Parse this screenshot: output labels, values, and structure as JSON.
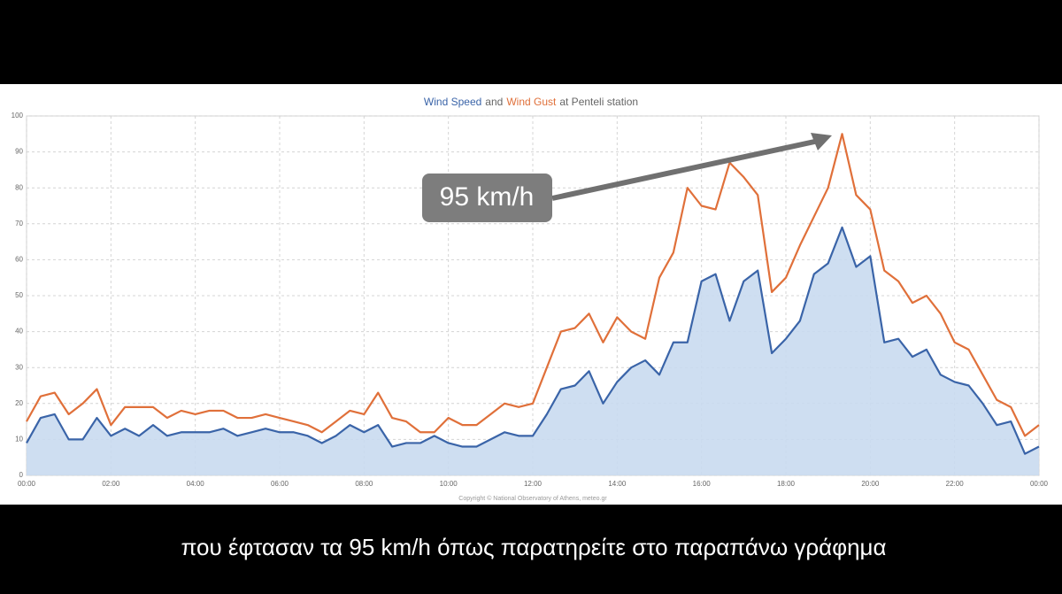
{
  "chart_data": {
    "type": "line",
    "title": {
      "joiner": "and",
      "tail": "at Penteli station"
    },
    "x": [
      0,
      20,
      40,
      60,
      80,
      100,
      120,
      140,
      160,
      180,
      200,
      220,
      240,
      260,
      280,
      300,
      320,
      340,
      360,
      380,
      400,
      420,
      440,
      460,
      480,
      500,
      520,
      540,
      560,
      580,
      600,
      620,
      640,
      660,
      680,
      700,
      720,
      740,
      760,
      780,
      800,
      820,
      840,
      860,
      880,
      900,
      920,
      940,
      960,
      980,
      1000,
      1020,
      1040,
      1060,
      1080,
      1100,
      1120,
      1140,
      1160,
      1180,
      1200,
      1220,
      1240,
      1260,
      1280,
      1300,
      1320,
      1340,
      1360,
      1380,
      1400,
      1420,
      1440
    ],
    "series": [
      {
        "name": "Wind Speed",
        "color": "#3a64a8",
        "fill": "#c9daf0",
        "values": [
          9,
          16,
          17,
          10,
          10,
          16,
          11,
          13,
          11,
          14,
          11,
          12,
          12,
          12,
          13,
          11,
          12,
          13,
          12,
          12,
          11,
          9,
          11,
          14,
          12,
          14,
          8,
          9,
          9,
          11,
          9,
          8,
          8,
          10,
          12,
          11,
          11,
          17,
          24,
          25,
          29,
          20,
          26,
          30,
          32,
          28,
          37,
          37,
          54,
          56,
          43,
          54,
          57,
          34,
          38,
          43,
          56,
          59,
          69,
          58,
          61,
          37,
          38,
          33,
          35,
          28,
          26,
          25,
          20,
          14,
          15,
          6,
          8
        ]
      },
      {
        "name": "Wind Gust",
        "color": "#e0703a",
        "values": [
          15,
          22,
          23,
          17,
          20,
          24,
          14,
          19,
          19,
          19,
          16,
          18,
          17,
          18,
          18,
          16,
          16,
          17,
          16,
          15,
          14,
          12,
          15,
          18,
          17,
          23,
          16,
          15,
          12,
          12,
          16,
          14,
          14,
          17,
          20,
          19,
          20,
          30,
          40,
          41,
          45,
          37,
          44,
          40,
          38,
          55,
          62,
          80,
          75,
          74,
          87,
          83,
          78,
          51,
          55,
          64,
          72,
          80,
          95,
          78,
          74,
          57,
          54,
          48,
          50,
          45,
          37,
          35,
          28,
          21,
          19,
          11,
          14
        ]
      }
    ],
    "xlim": [
      0,
      1440
    ],
    "xticks": [
      {
        "value": 0,
        "label": "00:00"
      },
      {
        "value": 120,
        "label": "02:00"
      },
      {
        "value": 240,
        "label": "04:00"
      },
      {
        "value": 360,
        "label": "06:00"
      },
      {
        "value": 480,
        "label": "08:00"
      },
      {
        "value": 600,
        "label": "10:00"
      },
      {
        "value": 720,
        "label": "12:00"
      },
      {
        "value": 840,
        "label": "14:00"
      },
      {
        "value": 960,
        "label": "16:00"
      },
      {
        "value": 1080,
        "label": "18:00"
      },
      {
        "value": 1200,
        "label": "20:00"
      },
      {
        "value": 1320,
        "label": "22:00"
      },
      {
        "value": 1440,
        "label": "00:00"
      }
    ],
    "ylim": [
      0,
      100
    ],
    "yticks": [
      0,
      10,
      20,
      30,
      40,
      50,
      60,
      70,
      80,
      90,
      100
    ],
    "grid": true,
    "credit": "Copyright © National Observatory of Athens, meteo.gr",
    "annotation": {
      "text": "95 km/h"
    }
  },
  "caption": "που έφτασαν τα 95 km/h όπως παρατηρείτε στο παραπάνω γράφημα"
}
